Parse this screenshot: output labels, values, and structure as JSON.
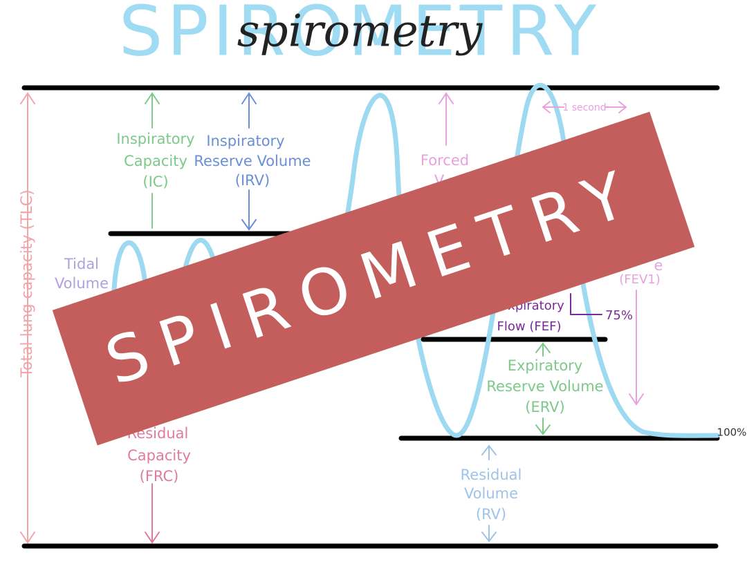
{
  "title": "SPIROMETRY",
  "title_script": "spirometry",
  "banner": "SPIROMETRY",
  "labels": {
    "one_second": "1 second",
    "inspiratory_capacity": [
      "Inspiratory",
      "Capacity",
      "(IC)"
    ],
    "inspiratory_reserve_volume": [
      "Inspiratory",
      "Reserve Volume",
      "(IRV)"
    ],
    "forced": [
      "Forced",
      "V"
    ],
    "tidal_volume": [
      "Tidal",
      "Volume"
    ],
    "fev": [
      "e",
      "(FEV1)"
    ],
    "fef": [
      "xpiratory",
      "Flow (FEF)"
    ],
    "percent_75": "75%",
    "expiratory_reserve_volume": [
      "Expiratory",
      "Reserve Volume",
      "(ERV)"
    ],
    "percent_100": "100%",
    "functional_residual_capacity": [
      "Residual",
      "Capacity",
      "(FRC)"
    ],
    "residual_volume": [
      "Residual",
      "Volume",
      "(RV)"
    ],
    "total_lung_capacity": "Total lung capacity (TLC)"
  }
}
